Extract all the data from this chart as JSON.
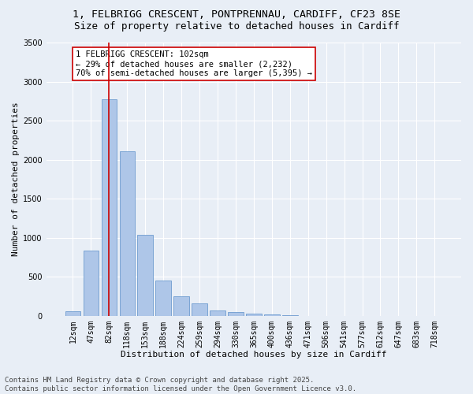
{
  "title_line1": "1, FELBRIGG CRESCENT, PONTPRENNAU, CARDIFF, CF23 8SE",
  "title_line2": "Size of property relative to detached houses in Cardiff",
  "xlabel": "Distribution of detached houses by size in Cardiff",
  "ylabel": "Number of detached properties",
  "categories": [
    "12sqm",
    "47sqm",
    "82sqm",
    "118sqm",
    "153sqm",
    "188sqm",
    "224sqm",
    "259sqm",
    "294sqm",
    "330sqm",
    "365sqm",
    "400sqm",
    "436sqm",
    "471sqm",
    "506sqm",
    "541sqm",
    "577sqm",
    "612sqm",
    "647sqm",
    "683sqm",
    "718sqm"
  ],
  "values": [
    55,
    840,
    2770,
    2110,
    1040,
    450,
    245,
    160,
    65,
    45,
    25,
    20,
    5,
    2,
    0,
    0,
    0,
    0,
    0,
    0,
    0
  ],
  "bar_color": "#aec6e8",
  "bar_edge_color": "#5b8fc9",
  "vline_x_index": 2,
  "vline_color": "#cc0000",
  "annotation_text": "1 FELBRIGG CRESCENT: 102sqm\n← 29% of detached houses are smaller (2,232)\n70% of semi-detached houses are larger (5,395) →",
  "annotation_box_color": "#ffffff",
  "annotation_box_edge": "#cc0000",
  "ylim": [
    0,
    3500
  ],
  "yticks": [
    0,
    500,
    1000,
    1500,
    2000,
    2500,
    3000,
    3500
  ],
  "background_color": "#e8eef6",
  "plot_bg_color": "#e8eef6",
  "footer_line1": "Contains HM Land Registry data © Crown copyright and database right 2025.",
  "footer_line2": "Contains public sector information licensed under the Open Government Licence v3.0.",
  "title_fontsize": 9.5,
  "subtitle_fontsize": 9,
  "axis_label_fontsize": 8,
  "tick_fontsize": 7,
  "annotation_fontsize": 7.5,
  "footer_fontsize": 6.5
}
